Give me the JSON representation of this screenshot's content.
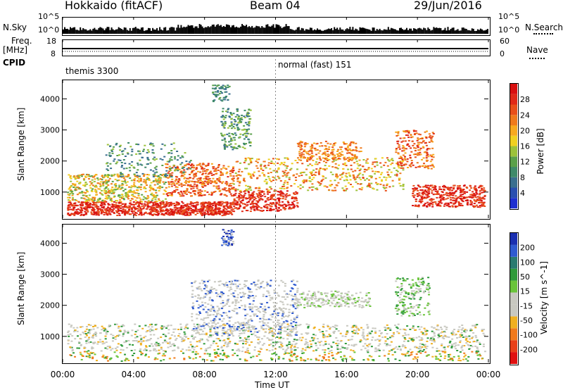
{
  "header": {
    "station": "Hokkaido (fitACF)",
    "beam": "Beam 04",
    "date": "29/Jun/2016"
  },
  "colors": {
    "background": "#ffffff",
    "axis": "#000000",
    "power_scale": [
      "#1f2fd0",
      "#2a4fb0",
      "#3a6f8f",
      "#3f8a6a",
      "#5aa04a",
      "#9cc23a",
      "#f0d020",
      "#f7a91f",
      "#ef7a1c",
      "#e8501a",
      "#e02a18",
      "#d81010"
    ],
    "velocity_scale": [
      "#1a2fb0",
      "#2f5ad0",
      "#2a7a70",
      "#2f9a3a",
      "#6ac43a",
      "#c8c8c0",
      "#c8c8c0",
      "#f0b020",
      "#f07a1c",
      "#e8401a",
      "#e01010"
    ]
  },
  "top_panels": {
    "nsky": {
      "left_label": "N.Sky",
      "right_label": "N.Search",
      "left_ticks": [
        "10^5",
        "10^0"
      ],
      "right_ticks": [
        "10^5",
        "10^0"
      ]
    },
    "freq": {
      "left_label_1": "Freq.",
      "left_label_2": "[MHz]",
      "right_label": "Nave",
      "left_ticks": [
        "18",
        "8"
      ],
      "right_ticks": [
        "60",
        "0"
      ]
    },
    "cpid": {
      "label": "CPID",
      "segments": [
        "themis 3300",
        "normal (fast) 151"
      ]
    }
  },
  "chart_data": [
    {
      "type": "heatmap",
      "title": "",
      "xlabel": "",
      "ylabel": "Slant Range [km]",
      "x_range": [
        "00:00",
        "24:00"
      ],
      "ylim": [
        180,
        4600
      ],
      "yticks": [
        1000,
        2000,
        3000,
        4000
      ],
      "colorbar": {
        "label": "Power [dB]",
        "range": [
          0,
          32
        ],
        "ticks": [
          4,
          8,
          12,
          16,
          20,
          24,
          28
        ]
      }
    },
    {
      "type": "heatmap",
      "title": "",
      "xlabel": "Time UT",
      "ylabel": "Slant Range [km]",
      "x_range": [
        "00:00",
        "24:00"
      ],
      "xticks": [
        "00:00",
        "04:00",
        "08:00",
        "12:00",
        "16:00",
        "20:00",
        "00:00"
      ],
      "ylim": [
        180,
        4600
      ],
      "yticks": [
        1000,
        2000,
        3000,
        4000
      ],
      "colorbar": {
        "label": "Velocity [m s^-1]",
        "range": [
          -250,
          250
        ],
        "ticks": [
          200,
          100,
          50,
          15,
          -15,
          -50,
          -100,
          -200
        ]
      }
    }
  ]
}
